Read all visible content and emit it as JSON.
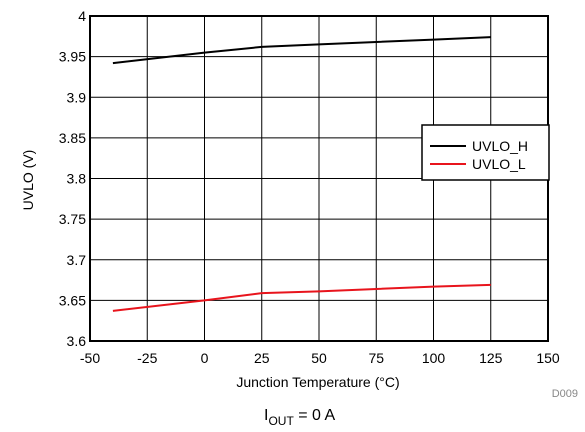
{
  "chart_data": {
    "type": "line",
    "xlabel": "Junction Temperature  (°C)",
    "ylabel": "UVLO (V)",
    "xlim": [
      -50,
      150
    ],
    "ylim": [
      3.6,
      4.0
    ],
    "x_ticks": [
      "-50",
      "-25",
      "0",
      "25",
      "50",
      "75",
      "100",
      "125",
      "150"
    ],
    "y_ticks": [
      "3.6",
      "3.65",
      "3.7",
      "3.75",
      "3.8",
      "3.85",
      "3.9",
      "3.95",
      "4"
    ],
    "grid": true,
    "legend_position": "right",
    "x": [
      -40,
      0,
      25,
      50,
      75,
      100,
      125
    ],
    "series": [
      {
        "name": "UVLO_H",
        "color": "#000000",
        "values": [
          3.942,
          3.955,
          3.962,
          3.965,
          3.968,
          3.971,
          3.974
        ]
      },
      {
        "name": "UVLO_L",
        "color": "#e8141c",
        "values": [
          3.637,
          3.65,
          3.659,
          3.661,
          3.664,
          3.667,
          3.669
        ]
      }
    ],
    "figure_id": "D009",
    "caption": {
      "main": "I",
      "subscript": "OUT",
      "suffix": " = 0 A"
    }
  }
}
